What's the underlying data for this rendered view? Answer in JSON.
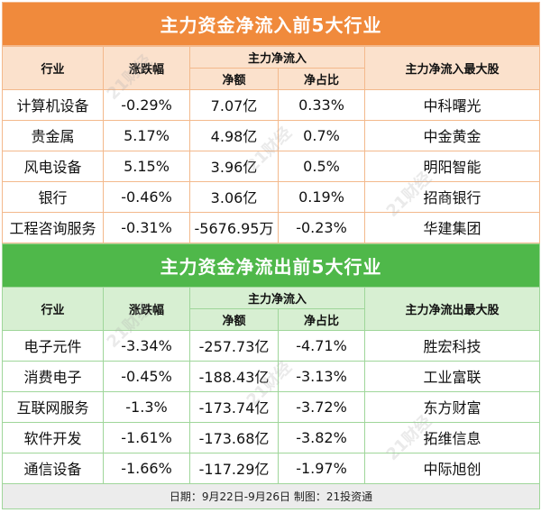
{
  "inflow": {
    "title": "主力资金净流入前5大行业",
    "headers": {
      "industry": "行业",
      "change": "涨跌幅",
      "main_flow": "主力净流入",
      "net_amount": "净额",
      "net_ratio": "净占比",
      "top_stock": "主力净流入最大股"
    },
    "rows": [
      {
        "industry": "计算机设备",
        "change": "-0.29%",
        "net": "7.07亿",
        "ratio": "0.33%",
        "stock": "中科曙光"
      },
      {
        "industry": "贵金属",
        "change": "5.17%",
        "net": "4.98亿",
        "ratio": "0.7%",
        "stock": "中金黄金"
      },
      {
        "industry": "风电设备",
        "change": "5.15%",
        "net": "3.96亿",
        "ratio": "0.5%",
        "stock": "明阳智能"
      },
      {
        "industry": "银行",
        "change": "-0.46%",
        "net": "3.06亿",
        "ratio": "0.19%",
        "stock": "招商银行"
      },
      {
        "industry": "工程咨询服务",
        "change": "-0.31%",
        "net": "-5676.95万",
        "ratio": "-0.23%",
        "stock": "华建集团"
      }
    ]
  },
  "outflow": {
    "title": "主力资金净流出前5大行业",
    "headers": {
      "industry": "行业",
      "change": "涨跌幅",
      "main_flow": "主力净流入",
      "net_amount": "净额",
      "net_ratio": "净占比",
      "top_stock": "主力净流出最大股"
    },
    "rows": [
      {
        "industry": "电子元件",
        "change": "-3.34%",
        "net": "-257.73亿",
        "ratio": "-4.71%",
        "stock": "胜宏科技"
      },
      {
        "industry": "消费电子",
        "change": "-0.45%",
        "net": "-188.43亿",
        "ratio": "-3.13%",
        "stock": "工业富联"
      },
      {
        "industry": "互联网服务",
        "change": "-1.3%",
        "net": "-173.74亿",
        "ratio": "-3.72%",
        "stock": "东方财富"
      },
      {
        "industry": "软件开发",
        "change": "-1.61%",
        "net": "-173.68亿",
        "ratio": "-3.82%",
        "stock": "拓维信息"
      },
      {
        "industry": "通信设备",
        "change": "-1.66%",
        "net": "-117.29亿",
        "ratio": "-1.97%",
        "stock": "中际旭创"
      }
    ]
  },
  "footer": "日期：9月22日-9月26日 制图：21投资通",
  "watermark": "21财经",
  "colors": {
    "inflow_accent": "#f08a3c",
    "outflow_accent": "#4fb84a"
  }
}
